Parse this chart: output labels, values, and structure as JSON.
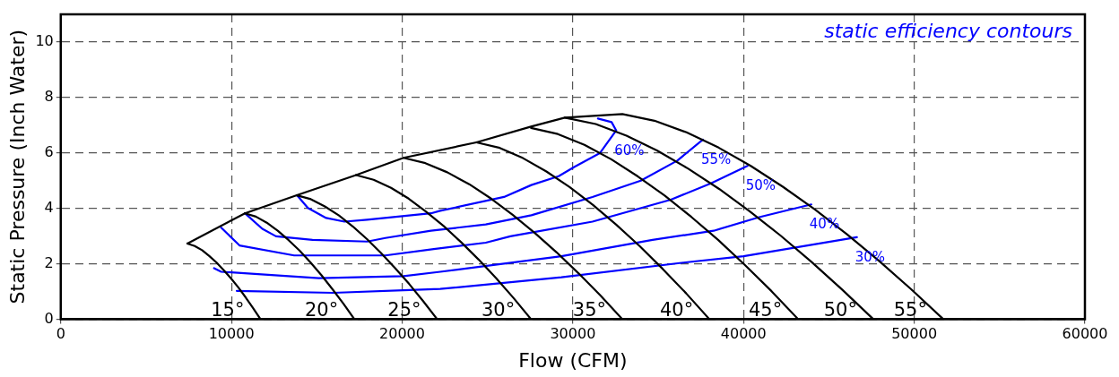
{
  "chart_data": {
    "type": "line",
    "xlabel": "Flow (CFM)",
    "ylabel": "Static Pressure (Inch Water)",
    "annotations": [
      "static efficiency contours"
    ],
    "xlim": [
      0,
      60000
    ],
    "xticks": [
      0,
      10000,
      20000,
      30000,
      40000,
      50000,
      60000
    ],
    "ylim": [
      0,
      11
    ],
    "yticks": [
      0,
      2,
      4,
      6,
      8,
      10
    ],
    "grid": true,
    "legend": false,
    "marker": "none",
    "series": [
      {
        "name": "15°",
        "color": "#000000",
        "x": [
          7420,
          7850,
          8280,
          8700,
          9130,
          9560,
          9990,
          10420,
          10840,
          11270,
          11700
        ],
        "values": [
          2.73,
          2.64,
          2.49,
          2.28,
          2.04,
          1.76,
          1.46,
          1.13,
          0.78,
          0.4,
          0
        ]
      },
      {
        "name": "20°",
        "color": "#000000",
        "x": [
          10790,
          11430,
          12070,
          12710,
          13350,
          14000,
          14640,
          15280,
          15920,
          16560,
          17200
        ],
        "values": [
          3.82,
          3.7,
          3.48,
          3.19,
          2.85,
          2.47,
          2.04,
          1.58,
          1.08,
          0.56,
          0
        ]
      },
      {
        "name": "25°",
        "color": "#000000",
        "x": [
          13830,
          14650,
          15470,
          16300,
          17120,
          17940,
          18760,
          19580,
          20410,
          21230,
          22050
        ],
        "values": [
          4.47,
          4.33,
          4.07,
          3.74,
          3.34,
          2.89,
          2.39,
          1.85,
          1.27,
          0.65,
          0
        ]
      },
      {
        "name": "30°",
        "color": "#000000",
        "x": [
          17300,
          18330,
          19350,
          20380,
          21400,
          22430,
          23450,
          24480,
          25500,
          26530,
          27550
        ],
        "values": [
          5.2,
          5.03,
          4.74,
          4.35,
          3.88,
          3.36,
          2.78,
          2.15,
          1.48,
          0.76,
          0
        ]
      },
      {
        "name": "35°",
        "color": "#000000",
        "x": [
          20080,
          21360,
          22640,
          23930,
          25210,
          26490,
          27770,
          29050,
          30340,
          31620,
          32900
        ],
        "values": [
          5.82,
          5.63,
          5.3,
          4.87,
          4.35,
          3.76,
          3.11,
          2.41,
          1.65,
          0.85,
          0
        ]
      },
      {
        "name": "40°",
        "color": "#000000",
        "x": [
          24350,
          25720,
          27080,
          28450,
          29810,
          31180,
          32540,
          33910,
          35270,
          36640,
          38000
        ],
        "values": [
          6.38,
          6.18,
          5.81,
          5.33,
          4.77,
          4.12,
          3.41,
          2.64,
          1.81,
          0.93,
          0
        ]
      },
      {
        "name": "45°",
        "color": "#000000",
        "x": [
          27550,
          29120,
          30680,
          32250,
          33810,
          35380,
          36940,
          38510,
          40070,
          41640,
          43200
        ],
        "values": [
          6.9,
          6.68,
          6.29,
          5.77,
          5.15,
          4.46,
          3.69,
          2.86,
          1.96,
          1.01,
          0
        ]
      },
      {
        "name": "50°",
        "color": "#000000",
        "x": [
          29530,
          31340,
          33140,
          34950,
          36760,
          38570,
          40370,
          42180,
          43990,
          45790,
          47600
        ],
        "values": [
          7.27,
          7.04,
          6.62,
          6.08,
          5.43,
          4.7,
          3.89,
          3.01,
          2.06,
          1.06,
          0
        ]
      },
      {
        "name": "55°",
        "color": "#000000",
        "x": [
          7420,
          10790,
          13830,
          17300,
          20080,
          24350,
          27550,
          29530,
          32900,
          34780,
          36660,
          38540,
          40420,
          42300,
          44180,
          46060,
          47940,
          49820,
          51700
        ],
        "values": [
          2.73,
          3.82,
          4.47,
          5.2,
          5.82,
          6.38,
          6.95,
          7.27,
          7.4,
          7.16,
          6.74,
          6.19,
          5.53,
          4.78,
          3.96,
          3.06,
          2.1,
          1.08,
          0
        ]
      },
      {
        "name": "60%",
        "color": "#0000ff",
        "x": [
          13840,
          14480,
          15550,
          16620,
          17950,
          21690,
          22230,
          25970,
          27570,
          29170,
          30080,
          31580,
          32540,
          32270,
          31470
        ],
        "values": [
          4.47,
          4.01,
          3.65,
          3.52,
          3.59,
          3.82,
          3.91,
          4.41,
          4.84,
          5.16,
          5.49,
          5.99,
          6.81,
          7.11,
          7.24
        ]
      },
      {
        "name": "55%",
        "color": "#0000ff",
        "x": [
          10790,
          11810,
          12610,
          14750,
          17950,
          19020,
          21690,
          24900,
          27570,
          31150,
          33980,
          36120,
          37620
        ],
        "values": [
          3.82,
          3.26,
          2.99,
          2.86,
          2.8,
          2.93,
          3.19,
          3.42,
          3.75,
          4.41,
          5.0,
          5.72,
          6.48
        ]
      },
      {
        "name": "50%",
        "color": "#0000ff",
        "x": [
          9400,
          10470,
          13670,
          19020,
          21850,
          24900,
          26340,
          31150,
          35740,
          38090,
          40230
        ],
        "values": [
          3.3,
          2.66,
          2.3,
          2.3,
          2.53,
          2.76,
          2.99,
          3.52,
          4.31,
          4.9,
          5.53
        ]
      },
      {
        "name": "40%",
        "color": "#0000ff",
        "x": [
          8980,
          9400,
          15120,
          20080,
          22230,
          29330,
          34670,
          38250,
          40920,
          43970
        ],
        "values": [
          1.84,
          1.71,
          1.48,
          1.55,
          1.71,
          2.27,
          2.86,
          3.19,
          3.68,
          4.14
        ]
      },
      {
        "name": "30%",
        "color": "#0000ff",
        "x": [
          10310,
          15960,
          20440,
          22230,
          29330,
          36480,
          40000,
          46640
        ],
        "values": [
          1.02,
          0.95,
          1.05,
          1.09,
          1.51,
          2.04,
          2.27,
          2.96
        ]
      }
    ]
  }
}
